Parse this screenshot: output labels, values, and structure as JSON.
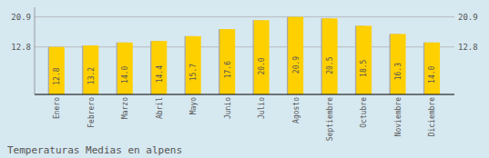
{
  "chart_data": {
    "type": "bar",
    "title": "Temperaturas Medias en alpens",
    "categories": [
      "Enero",
      "Febrero",
      "Marzo",
      "Abril",
      "Mayo",
      "Junio",
      "Julio",
      "Agosto",
      "Septiembre",
      "Octubre",
      "Noviembre",
      "Diciembre"
    ],
    "series": [
      {
        "color": "#AAAAAA",
        "values": [
          12.8,
          13.2,
          14.0,
          14.4,
          15.7,
          17.6,
          20.0,
          20.9,
          20.5,
          18.5,
          16.3,
          14.0
        ]
      },
      {
        "color": "#FFD000",
        "values": [
          12.8,
          13.2,
          14.0,
          14.4,
          15.7,
          17.6,
          20.0,
          20.9,
          20.5,
          18.5,
          16.3,
          14.0
        ],
        "value_labels": [
          "12.8",
          "13.2",
          "14.0",
          "14.4",
          "15.7",
          "17.6",
          "20.0",
          "20.9",
          "20.5",
          "18.5",
          "16.3",
          "14.0"
        ]
      }
    ],
    "ylim": [
      0,
      23.5
    ],
    "yticks": [
      12.8,
      20.9
    ],
    "y2lim": [
      0,
      23.5
    ],
    "y2ticks": [
      12.8,
      20.9
    ],
    "grid": true,
    "data_labels": true
  }
}
